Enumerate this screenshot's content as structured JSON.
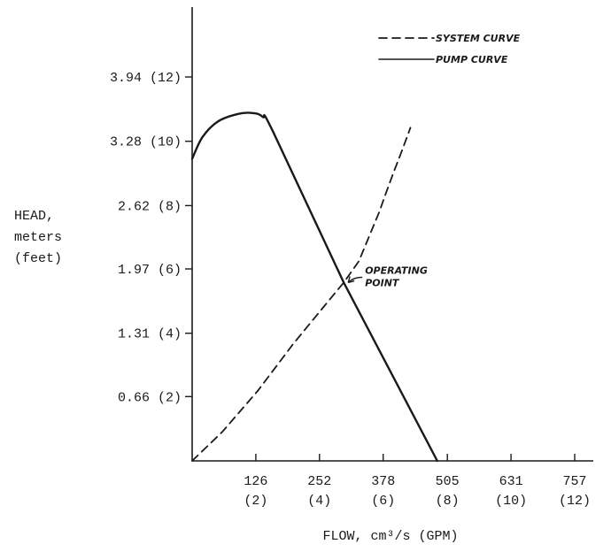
{
  "chart_data": {
    "type": "line",
    "xlabel": "FLOW, cm³/s (GPM)",
    "ylabel_lines": [
      "HEAD,",
      "meters",
      "(feet)"
    ],
    "xlim": [
      0,
      757
    ],
    "ylim": [
      0,
      4.2
    ],
    "x_ticks": [
      {
        "value": 126,
        "label": "126",
        "sublabel": "(2)"
      },
      {
        "value": 252,
        "label": "252",
        "sublabel": "(4)"
      },
      {
        "value": 378,
        "label": "378",
        "sublabel": "(6)"
      },
      {
        "value": 505,
        "label": "505",
        "sublabel": "(8)"
      },
      {
        "value": 631,
        "label": "631",
        "sublabel": "(10)"
      },
      {
        "value": 757,
        "label": "757",
        "sublabel": "(12)"
      }
    ],
    "y_ticks": [
      {
        "value": 0.66,
        "label": "0.66 (2)"
      },
      {
        "value": 1.31,
        "label": "1.31 (4)"
      },
      {
        "value": 1.97,
        "label": "1.97 (6)"
      },
      {
        "value": 2.62,
        "label": "2.62 (8)"
      },
      {
        "value": 3.28,
        "label": "3.28 (10)"
      },
      {
        "value": 3.94,
        "label": "3.94 (12)"
      }
    ],
    "series": [
      {
        "name": "SYSTEM CURVE",
        "style": "dashed",
        "x": [
          0,
          60,
          130,
          200,
          260,
          300,
          330,
          350,
          370,
          385,
          400,
          415,
          432
        ],
        "y": [
          0,
          0.3,
          0.72,
          1.2,
          1.58,
          1.83,
          2.05,
          2.3,
          2.55,
          2.77,
          2.98,
          3.18,
          3.42
        ]
      },
      {
        "name": "PUMP CURVE",
        "style": "solid",
        "x": [
          0,
          20,
          50,
          90,
          120,
          140,
          160,
          300,
          485
        ],
        "y": [
          3.1,
          3.32,
          3.48,
          3.56,
          3.57,
          3.53,
          3.38,
          1.83,
          0
        ]
      }
    ],
    "annotation": {
      "text": [
        "OPERATING",
        "POINT"
      ],
      "x": 300,
      "y": 1.83
    },
    "legend_position": "top-right",
    "grid": false
  }
}
